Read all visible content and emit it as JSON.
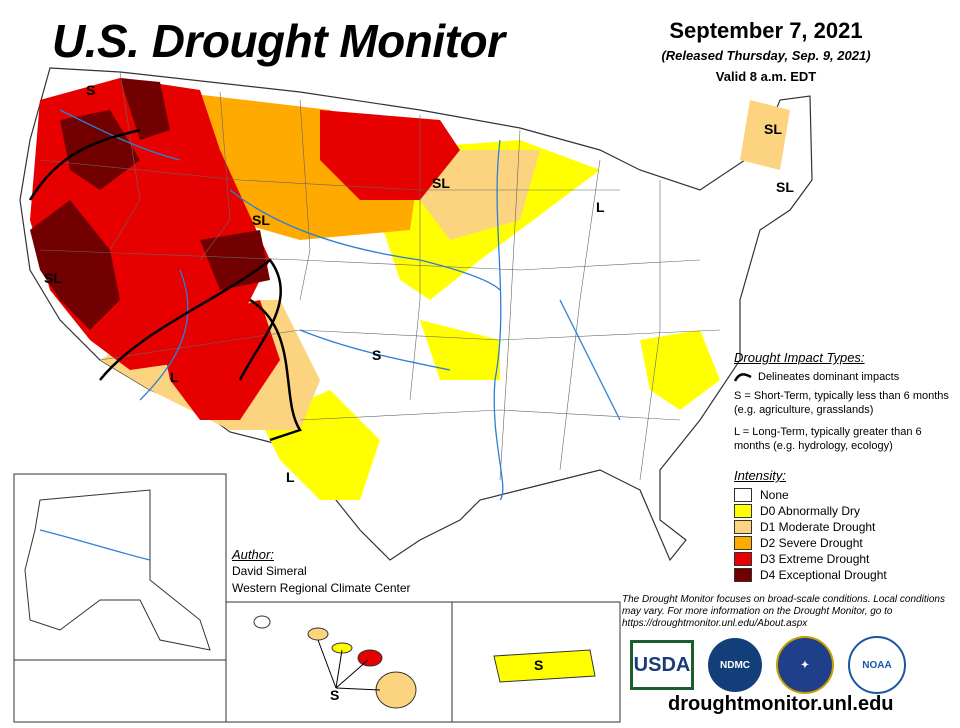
{
  "header": {
    "title": "U.S. Drought Monitor",
    "date": "September 7, 2021",
    "released": "(Released Thursday, Sep. 9, 2021)",
    "valid": "Valid 8 a.m. EDT"
  },
  "impact": {
    "heading": "Drought Impact Types:",
    "delineates": "Delineates dominant impacts",
    "s_desc": "S = Short-Term, typically less than 6 months (e.g. agriculture, grasslands)",
    "l_desc": "L = Long-Term, typically greater than 6 months (e.g. hydrology, ecology)"
  },
  "intensity": {
    "heading": "Intensity:",
    "items": [
      {
        "label": "None",
        "color": "#ffffff"
      },
      {
        "label": "D0 Abnormally Dry",
        "color": "#ffff00"
      },
      {
        "label": "D1 Moderate Drought",
        "color": "#fcd37f"
      },
      {
        "label": "D2 Severe Drought",
        "color": "#ffaa00"
      },
      {
        "label": "D3 Extreme Drought",
        "color": "#e60000"
      },
      {
        "label": "D4 Exceptional Drought",
        "color": "#730000"
      }
    ]
  },
  "author": {
    "heading": "Author:",
    "name": "David Simeral",
    "org": "Western Regional Climate Center"
  },
  "note": "The Drought Monitor focuses on broad-scale conditions. Local conditions may vary. For more information on the Drought Monitor, go to https://droughtmonitor.unl.edu/About.aspx",
  "logos": {
    "usda": "USDA",
    "ndmc": "NDMC",
    "ndmc_ring": "NATIONAL DROUGHT MITIGATION CENTER",
    "commerce": "DEPARTMENT OF COMMERCE",
    "noaa": "NOAA"
  },
  "url": "droughtmonitor.unl.edu",
  "map_labels": {
    "s_nw": "S",
    "sl_west": "SL",
    "sl_ca": "SL",
    "l_sw": "L",
    "l_tx": "L",
    "s_plains": "S",
    "sl_north": "SL",
    "l_mi": "L",
    "sl_me": "SL",
    "sl_ne": "SL",
    "s_hi": "S",
    "s_pr": "S"
  }
}
